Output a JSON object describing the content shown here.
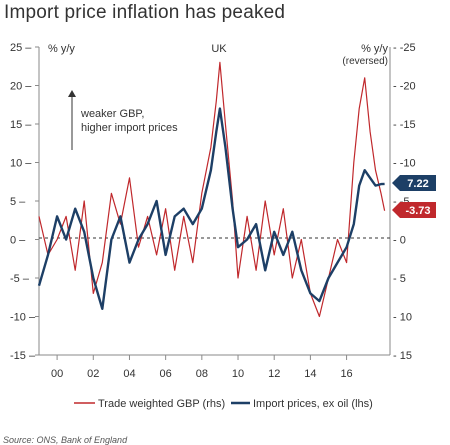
{
  "title": "Import price inflation has peaked",
  "source": "Source: ONS, Bank of England",
  "chart_data": {
    "type": "line",
    "region_label": "UK",
    "left_axis": {
      "label": "% y/y",
      "ylim": [
        -15,
        25
      ],
      "ticks": [
        "25",
        "20",
        "15",
        "10",
        "5",
        "0",
        "-5",
        "-10",
        "-15"
      ],
      "tick_values": [
        25,
        20,
        15,
        10,
        5,
        0,
        -5,
        -10,
        -15
      ]
    },
    "right_axis": {
      "label": "% y/y",
      "sublabel": "(reversed)",
      "reversed": true,
      "ylim": [
        15,
        -25
      ],
      "ticks": [
        "-25",
        "-20",
        "-15",
        "-10",
        "-5",
        "0",
        "5",
        "10",
        "15"
      ],
      "tick_values": [
        -25,
        -20,
        -15,
        -10,
        -5,
        0,
        5,
        10,
        15
      ]
    },
    "x_ticks": [
      "00",
      "02",
      "04",
      "06",
      "08",
      "10",
      "12",
      "14",
      "16"
    ],
    "x_tick_years": [
      2000,
      2002,
      2004,
      2006,
      2008,
      2010,
      2012,
      2014,
      2016
    ],
    "xlim": [
      1999.0,
      2018.4
    ],
    "annotation": {
      "line1": "weaker GBP,",
      "line2": "higher import prices"
    },
    "end_labels": {
      "import": "7.22",
      "gbp": "-3.73"
    },
    "colors": {
      "gbp": "#c0282c",
      "import": "#1d3f66",
      "axis": "#8a8a8a",
      "text": "#333333"
    },
    "series": [
      {
        "name": "Trade weighted GBP (rhs)",
        "axis": "right",
        "x": [
          1999.0,
          1999.5,
          2000.0,
          2000.5,
          2001.0,
          2001.5,
          2002.0,
          2002.5,
          2003.0,
          2003.5,
          2004.0,
          2004.5,
          2005.0,
          2005.5,
          2006.0,
          2006.5,
          2007.0,
          2007.5,
          2008.0,
          2008.5,
          2008.8,
          2009.0,
          2009.3,
          2009.7,
          2010.0,
          2010.5,
          2011.0,
          2011.5,
          2012.0,
          2012.5,
          2013.0,
          2013.5,
          2014.0,
          2014.5,
          2015.0,
          2015.5,
          2016.0,
          2016.4,
          2016.7,
          2017.0,
          2017.3,
          2017.6,
          2017.9,
          2018.1
        ],
        "y": [
          -3,
          2,
          0,
          -3,
          4,
          -5,
          7,
          3,
          -6,
          -2,
          -8,
          1,
          -3,
          2,
          -4,
          4,
          -3,
          3,
          -6,
          -12,
          -18,
          -23,
          -15,
          -5,
          5,
          -3,
          4,
          -5,
          2,
          -4,
          5,
          0,
          7,
          10,
          5,
          0,
          3,
          -10,
          -17,
          -21,
          -14,
          -9,
          -6,
          -3.73
        ]
      },
      {
        "name": "Import prices, ex oil (lhs)",
        "axis": "left",
        "x": [
          1999.0,
          1999.5,
          2000.0,
          2000.5,
          2001.0,
          2001.5,
          2002.0,
          2002.5,
          2003.0,
          2003.5,
          2004.0,
          2004.5,
          2005.0,
          2005.5,
          2006.0,
          2006.5,
          2007.0,
          2007.5,
          2008.0,
          2008.5,
          2008.8,
          2009.0,
          2009.3,
          2009.7,
          2010.0,
          2010.5,
          2011.0,
          2011.5,
          2012.0,
          2012.5,
          2013.0,
          2013.5,
          2014.0,
          2014.5,
          2015.0,
          2015.5,
          2016.0,
          2016.4,
          2016.7,
          2017.0,
          2017.3,
          2017.6,
          2017.9,
          2018.1
        ],
        "y": [
          -6,
          -2,
          3,
          0,
          4,
          1,
          -5,
          -9,
          0,
          3,
          -3,
          0,
          2,
          5,
          -2,
          3,
          4,
          2,
          4,
          9,
          14,
          17,
          12,
          4,
          -1,
          0,
          2,
          -4,
          1,
          -2,
          1,
          -4,
          -7,
          -8,
          -5,
          -3,
          -1,
          2,
          7,
          9,
          8,
          7,
          7.2,
          7.22
        ]
      }
    ]
  }
}
